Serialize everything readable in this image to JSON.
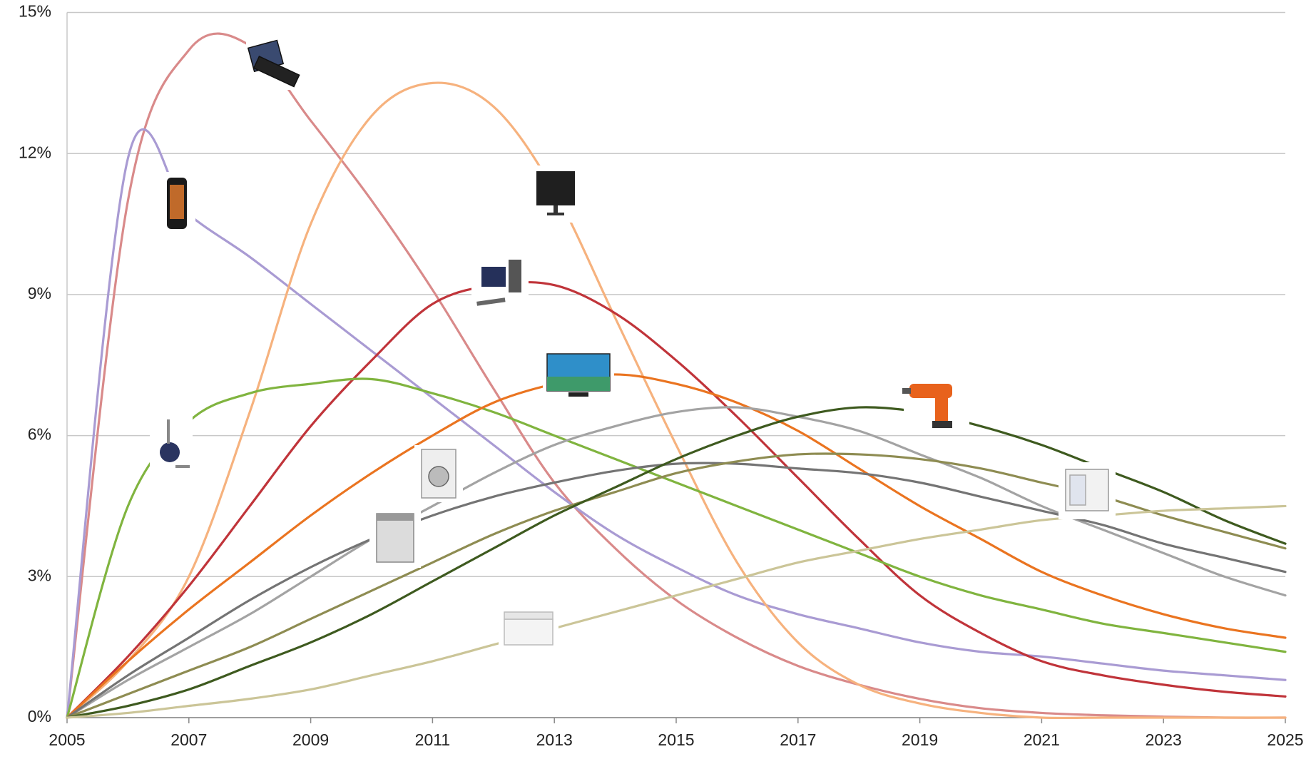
{
  "chart_data": {
    "type": "line",
    "x": [
      2005,
      2006,
      2007,
      2008,
      2009,
      2010,
      2011,
      2012,
      2013,
      2014,
      2015,
      2016,
      2017,
      2018,
      2019,
      2020,
      2021,
      2022,
      2023,
      2024,
      2025
    ],
    "xlim": [
      2005,
      2025
    ],
    "xticks": [
      2005,
      2007,
      2009,
      2011,
      2013,
      2015,
      2017,
      2019,
      2021,
      2023,
      2025
    ],
    "ylim": [
      0,
      15
    ],
    "yticks": [
      {
        "value": 0,
        "label": "0%"
      },
      {
        "value": 3,
        "label": "3%"
      },
      {
        "value": 6,
        "label": "6%"
      },
      {
        "value": 9,
        "label": "9%"
      },
      {
        "value": 12,
        "label": "12%"
      },
      {
        "value": 15,
        "label": "15%"
      }
    ],
    "grid": true,
    "series": [
      {
        "color": "#d98a8a",
        "values": [
          0,
          11,
          14.2,
          14.3,
          12.7,
          11,
          9.1,
          7,
          5,
          3.6,
          2.5,
          1.7,
          1.1,
          0.7,
          0.4,
          0.2,
          0.1,
          0.05,
          0.02,
          0,
          0
        ]
      },
      {
        "color": "#a99bd3",
        "values": [
          0,
          11.9,
          10.7,
          9.8,
          8.8,
          7.8,
          6.8,
          5.8,
          4.8,
          3.9,
          3.2,
          2.6,
          2.2,
          1.9,
          1.6,
          1.4,
          1.3,
          1.15,
          1.0,
          0.9,
          0.8
        ]
      },
      {
        "color": "#f6b27e",
        "values": [
          0,
          1.2,
          3,
          6.5,
          10.5,
          12.8,
          13.5,
          13,
          11.2,
          8.5,
          5.8,
          3.3,
          1.6,
          0.7,
          0.3,
          0.1,
          0,
          0,
          0,
          0,
          0
        ]
      },
      {
        "color": "#c0343a",
        "values": [
          0,
          1.3,
          2.8,
          4.5,
          6.2,
          7.6,
          8.8,
          9.2,
          9.2,
          8.6,
          7.6,
          6.4,
          5.1,
          3.8,
          2.6,
          1.8,
          1.2,
          0.9,
          0.7,
          0.55,
          0.45
        ]
      },
      {
        "color": "#80b43f",
        "values": [
          0,
          4.5,
          6.3,
          6.9,
          7.1,
          7.2,
          6.9,
          6.5,
          6.0,
          5.5,
          5.0,
          4.5,
          4.0,
          3.5,
          3.0,
          2.6,
          2.3,
          2.0,
          1.8,
          1.6,
          1.4
        ]
      },
      {
        "color": "#ea7420",
        "values": [
          0,
          1.2,
          2.3,
          3.3,
          4.3,
          5.2,
          6.0,
          6.7,
          7.1,
          7.3,
          7.1,
          6.7,
          6.1,
          5.3,
          4.5,
          3.8,
          3.1,
          2.6,
          2.2,
          1.9,
          1.7
        ]
      },
      {
        "color": "#a3a3a3",
        "values": [
          0,
          0.8,
          1.5,
          2.2,
          3.0,
          3.8,
          4.5,
          5.2,
          5.8,
          6.2,
          6.5,
          6.6,
          6.4,
          6.1,
          5.6,
          5.1,
          4.5,
          4.0,
          3.5,
          3.0,
          2.6
        ]
      },
      {
        "color": "#747474",
        "values": [
          0,
          0.9,
          1.7,
          2.5,
          3.2,
          3.8,
          4.3,
          4.7,
          5.0,
          5.25,
          5.4,
          5.4,
          5.3,
          5.2,
          5.0,
          4.7,
          4.4,
          4.1,
          3.7,
          3.4,
          3.1
        ]
      },
      {
        "color": "#8e8c52",
        "values": [
          0,
          0.5,
          1.0,
          1.5,
          2.1,
          2.7,
          3.3,
          3.9,
          4.4,
          4.8,
          5.2,
          5.45,
          5.6,
          5.6,
          5.5,
          5.3,
          5.0,
          4.7,
          4.3,
          3.95,
          3.6
        ]
      },
      {
        "color": "#3e5a1f",
        "values": [
          0,
          0.25,
          0.6,
          1.1,
          1.6,
          2.2,
          2.9,
          3.6,
          4.3,
          4.9,
          5.5,
          6.0,
          6.4,
          6.6,
          6.5,
          6.2,
          5.8,
          5.3,
          4.8,
          4.2,
          3.7
        ]
      },
      {
        "color": "#cbc598",
        "values": [
          0,
          0.1,
          0.25,
          0.4,
          0.6,
          0.9,
          1.2,
          1.55,
          1.9,
          2.25,
          2.6,
          2.95,
          3.3,
          3.55,
          3.8,
          4.0,
          4.2,
          4.3,
          4.4,
          4.45,
          4.5
        ]
      }
    ]
  }
}
